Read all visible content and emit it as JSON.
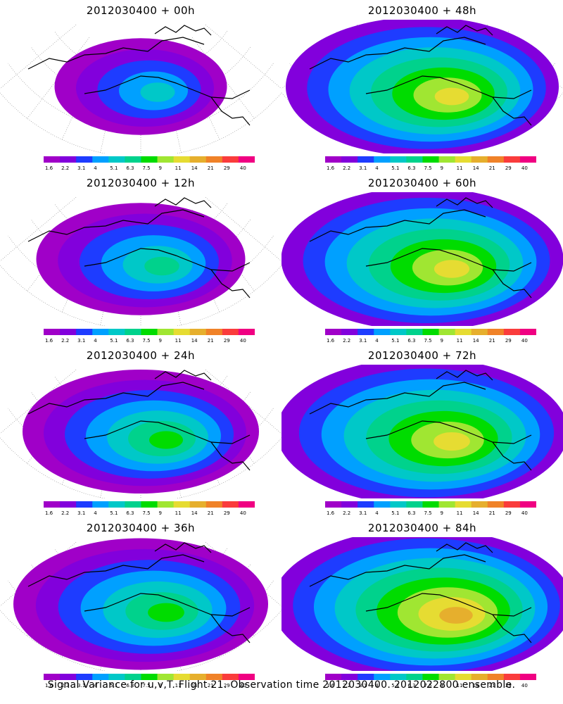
{
  "chart_data": {
    "type": "heatmap",
    "caption": "Signal Variance for u,v,T. Flight 21. Observation time 2012030400. 2012022800 ensemble.",
    "colorbar": {
      "labels": [
        "1.6",
        "2.2",
        "3.1",
        "4",
        "5.1",
        "6.3",
        "7.5",
        "9",
        "11",
        "14",
        "21",
        "29",
        "40"
      ],
      "colors": [
        "#a000c8",
        "#8200dc",
        "#1e3cff",
        "#00a0ff",
        "#00c8c8",
        "#00d28c",
        "#00dc00",
        "#a0e632",
        "#e6dc32",
        "#e6af2d",
        "#f08228",
        "#fa3c3c",
        "#f00082"
      ]
    },
    "panels": [
      {
        "title": "2012030400 + 00h",
        "level": 0.25
      },
      {
        "title": "2012030400 + 48h",
        "level": 0.8
      },
      {
        "title": "2012030400 + 12h",
        "level": 0.45
      },
      {
        "title": "2012030400 + 60h",
        "level": 0.85
      },
      {
        "title": "2012030400 + 24h",
        "level": 0.6
      },
      {
        "title": "2012030400 + 72h",
        "level": 0.9
      },
      {
        "title": "2012030400 + 36h",
        "level": 0.7
      },
      {
        "title": "2012030400 + 84h",
        "level": 0.95
      }
    ]
  }
}
